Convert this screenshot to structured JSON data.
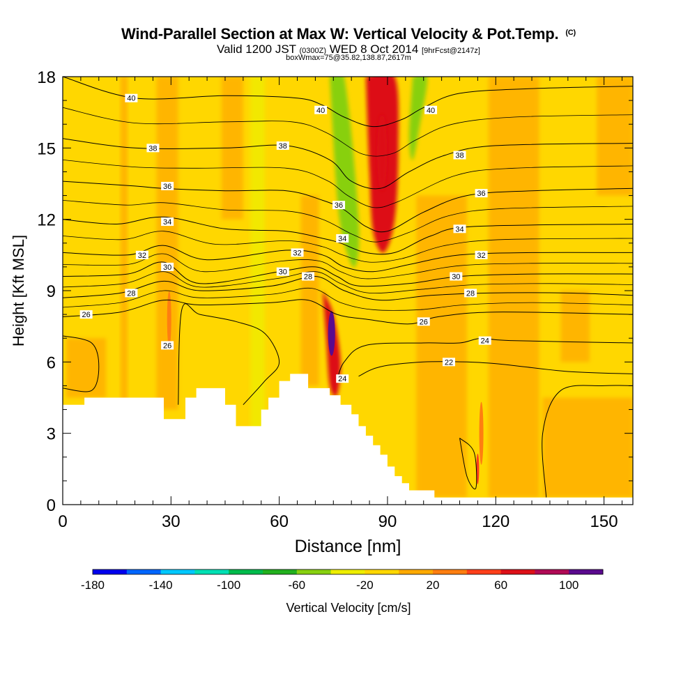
{
  "header": {
    "title": "Wind-Parallel Section at Max W: Vertical Velocity & Pot.Temp.",
    "copyright": "(C)",
    "valid_prefix": "Valid 1200 JST",
    "valid_utc": "(0300Z)",
    "valid_date": "WED 8 Oct 2014",
    "forecast": "[9hrFcst@2147z]",
    "box_info": "boxWmax=75@35.82,138.87,2617m"
  },
  "chart_data": {
    "type": "heatmap",
    "title": "Wind-Parallel Section at Max W: Vertical Velocity & Pot.Temp.",
    "xlabel": "Distance [nm]",
    "ylabel": "Height [Kft MSL]",
    "xlim": [
      0,
      158
    ],
    "ylim": [
      0,
      18
    ],
    "x_ticks": [
      "0",
      "30",
      "60",
      "90",
      "120",
      "150"
    ],
    "y_ticks": [
      "0",
      "3",
      "6",
      "9",
      "12",
      "15",
      "18"
    ],
    "colorbar": {
      "label": "Vertical Velocity [cm/s]",
      "tick_labels": [
        "-180",
        "-140",
        "-100",
        "-60",
        "-20",
        "20",
        "60",
        "100"
      ],
      "levels": [
        -180,
        -160,
        -140,
        -120,
        -100,
        -80,
        -60,
        -40,
        -20,
        0,
        20,
        40,
        60,
        80,
        100,
        120
      ],
      "colors": [
        "#0000ee",
        "#0066ff",
        "#00c8ff",
        "#00e0b4",
        "#00bb4c",
        "#22b01e",
        "#88d010",
        "#eeee00",
        "#ffd700",
        "#ffaa00",
        "#ff7e10",
        "#ff3f1a",
        "#dd1018",
        "#b00a55",
        "#5a0a8e"
      ]
    },
    "terrain": [
      [
        0,
        4.2
      ],
      [
        6,
        4.2
      ],
      [
        6,
        4.5
      ],
      [
        12,
        4.5
      ],
      [
        12,
        4.5
      ],
      [
        28,
        4.5
      ],
      [
        28,
        3.6
      ],
      [
        34,
        3.6
      ],
      [
        34,
        4.5
      ],
      [
        37,
        4.5
      ],
      [
        37,
        4.9
      ],
      [
        45,
        4.9
      ],
      [
        45,
        4.2
      ],
      [
        48,
        4.2
      ],
      [
        48,
        3.3
      ],
      [
        55,
        3.3
      ],
      [
        55,
        4.0
      ],
      [
        57,
        4.0
      ],
      [
        57,
        4.5
      ],
      [
        60,
        4.5
      ],
      [
        60,
        5.2
      ],
      [
        63,
        5.2
      ],
      [
        63,
        5.5
      ],
      [
        68,
        5.5
      ],
      [
        68,
        4.9
      ],
      [
        74,
        4.9
      ],
      [
        74,
        4.6
      ],
      [
        77,
        4.6
      ],
      [
        77,
        4.2
      ],
      [
        80,
        4.2
      ],
      [
        80,
        3.8
      ],
      [
        82,
        3.8
      ],
      [
        82,
        3.3
      ],
      [
        84,
        3.3
      ],
      [
        84,
        2.9
      ],
      [
        86,
        2.9
      ],
      [
        86,
        2.5
      ],
      [
        88,
        2.5
      ],
      [
        88,
        2.1
      ],
      [
        90,
        2.1
      ],
      [
        90,
        1.6
      ],
      [
        92,
        1.6
      ],
      [
        92,
        1.2
      ],
      [
        94,
        1.2
      ],
      [
        94,
        0.9
      ],
      [
        96,
        0.9
      ],
      [
        96,
        0.6
      ],
      [
        100,
        0.6
      ],
      [
        100,
        0.6
      ],
      [
        103,
        0.6
      ],
      [
        103,
        0.3
      ],
      [
        158,
        0.3
      ]
    ],
    "series": [
      {
        "name": "40",
        "values": [
          [
            0,
            18.0
          ],
          [
            20,
            17.1
          ],
          [
            45,
            17.2
          ],
          [
            65,
            17.1
          ],
          [
            72,
            16.8
          ],
          [
            78,
            16.3
          ],
          [
            86,
            15.9
          ],
          [
            94,
            16.2
          ],
          [
            100,
            16.7
          ],
          [
            110,
            17.3
          ],
          [
            130,
            17.5
          ],
          [
            158,
            17.6
          ]
        ]
      },
      {
        "name": "38",
        "values": [
          [
            0,
            15.4
          ],
          [
            20,
            15.0
          ],
          [
            45,
            15.0
          ],
          [
            62,
            15.1
          ],
          [
            74,
            14.5
          ],
          [
            80,
            13.6
          ],
          [
            88,
            13.3
          ],
          [
            96,
            14.0
          ],
          [
            106,
            14.7
          ],
          [
            120,
            15.1
          ],
          [
            158,
            15.2
          ]
        ]
      },
      {
        "name": "36",
        "values": [
          [
            0,
            13.6
          ],
          [
            20,
            13.4
          ],
          [
            28,
            13.3
          ],
          [
            45,
            13.2
          ],
          [
            62,
            13.2
          ],
          [
            72,
            12.8
          ],
          [
            78,
            12.4
          ],
          [
            84,
            11.7
          ],
          [
            90,
            11.5
          ],
          [
            100,
            12.3
          ],
          [
            112,
            13.0
          ],
          [
            130,
            13.2
          ],
          [
            158,
            13.3
          ]
        ]
      },
      {
        "name": "34",
        "values": [
          [
            0,
            12.0
          ],
          [
            15,
            11.8
          ],
          [
            28,
            12.1
          ],
          [
            45,
            11.6
          ],
          [
            62,
            11.5
          ],
          [
            72,
            11.2
          ],
          [
            77,
            11.0
          ],
          [
            84,
            10.6
          ],
          [
            92,
            10.6
          ],
          [
            102,
            11.3
          ],
          [
            114,
            11.7
          ],
          [
            158,
            11.8
          ]
        ]
      },
      {
        "name": "32",
        "values": [
          [
            0,
            10.6
          ],
          [
            18,
            10.5
          ],
          [
            28,
            10.9
          ],
          [
            40,
            10.3
          ],
          [
            62,
            10.7
          ],
          [
            72,
            10.5
          ],
          [
            78,
            10.0
          ],
          [
            86,
            9.8
          ],
          [
            96,
            10.1
          ],
          [
            110,
            10.5
          ],
          [
            130,
            10.6
          ],
          [
            158,
            10.6
          ]
        ]
      },
      {
        "name": "30",
        "values": [
          [
            0,
            9.6
          ],
          [
            18,
            9.7
          ],
          [
            28,
            10.2
          ],
          [
            38,
            9.3
          ],
          [
            60,
            9.8
          ],
          [
            70,
            10.0
          ],
          [
            76,
            9.6
          ],
          [
            82,
            9.2
          ],
          [
            96,
            9.3
          ],
          [
            110,
            9.6
          ],
          [
            130,
            9.7
          ],
          [
            158,
            9.7
          ]
        ]
      },
      {
        "name": "28",
        "values": [
          [
            0,
            8.7
          ],
          [
            16,
            8.9
          ],
          [
            28,
            9.4
          ],
          [
            38,
            9.0
          ],
          [
            58,
            9.2
          ],
          [
            70,
            9.6
          ],
          [
            78,
            9.0
          ],
          [
            88,
            8.6
          ],
          [
            102,
            8.8
          ],
          [
            118,
            8.9
          ],
          [
            140,
            8.9
          ],
          [
            158,
            8.8
          ]
        ]
      },
      {
        "name": "26",
        "values": [
          [
            0,
            7.9
          ],
          [
            16,
            8.1
          ],
          [
            28,
            8.6
          ],
          [
            38,
            8.4
          ],
          [
            58,
            8.5
          ],
          [
            68,
            8.6
          ],
          [
            76,
            8.0
          ],
          [
            84,
            7.8
          ],
          [
            96,
            7.6
          ],
          [
            104,
            7.9
          ],
          [
            120,
            8.1
          ],
          [
            158,
            8.0
          ]
        ]
      },
      {
        "name": "24",
        "values": [
          [
            76,
            5.2
          ],
          [
            78,
            6.0
          ],
          [
            84,
            6.7
          ],
          [
            100,
            6.8
          ],
          [
            110,
            6.8
          ],
          [
            116,
            7.0
          ],
          [
            124,
            6.9
          ],
          [
            158,
            6.8
          ]
        ]
      },
      {
        "name": "22",
        "values": [
          [
            82,
            5.4
          ],
          [
            88,
            5.8
          ],
          [
            100,
            6.0
          ],
          [
            112,
            6.0
          ],
          [
            122,
            5.9
          ],
          [
            140,
            5.6
          ],
          [
            158,
            5.5
          ]
        ]
      }
    ],
    "contour_labels": [
      {
        "text": "40",
        "x": 19,
        "y": 17.1
      },
      {
        "text": "40",
        "x": 71.5,
        "y": 16.6
      },
      {
        "text": "40",
        "x": 102,
        "y": 16.6
      },
      {
        "text": "38",
        "x": 25,
        "y": 15.0
      },
      {
        "text": "38",
        "x": 61,
        "y": 15.1
      },
      {
        "text": "38",
        "x": 110,
        "y": 14.7
      },
      {
        "text": "36",
        "x": 29,
        "y": 13.4
      },
      {
        "text": "36",
        "x": 76.5,
        "y": 12.6
      },
      {
        "text": "36",
        "x": 116,
        "y": 13.1
      },
      {
        "text": "34",
        "x": 29,
        "y": 11.9
      },
      {
        "text": "34",
        "x": 77.5,
        "y": 11.2
      },
      {
        "text": "34",
        "x": 110,
        "y": 11.6
      },
      {
        "text": "32",
        "x": 22,
        "y": 10.5
      },
      {
        "text": "32",
        "x": 65,
        "y": 10.6
      },
      {
        "text": "32",
        "x": 116,
        "y": 10.5
      },
      {
        "text": "30",
        "x": 29,
        "y": 10.0
      },
      {
        "text": "30",
        "x": 61,
        "y": 9.8
      },
      {
        "text": "30",
        "x": 109,
        "y": 9.6
      },
      {
        "text": "28",
        "x": 19,
        "y": 8.9
      },
      {
        "text": "28",
        "x": 68,
        "y": 9.6
      },
      {
        "text": "28",
        "x": 113,
        "y": 8.9
      },
      {
        "text": "26",
        "x": 6.5,
        "y": 8.0
      },
      {
        "text": "26",
        "x": 29,
        "y": 6.7
      },
      {
        "text": "26",
        "x": 100,
        "y": 7.7
      },
      {
        "text": "24",
        "x": 77.5,
        "y": 5.3
      },
      {
        "text": "24",
        "x": 117,
        "y": 6.9
      },
      {
        "text": "22",
        "x": 107,
        "y": 6.0
      }
    ],
    "wind_features": [
      {
        "label": "downdraft band",
        "value": -60,
        "points": [
          [
            74,
            18
          ],
          [
            78,
            18
          ],
          [
            82,
            12
          ],
          [
            81,
            10
          ],
          [
            78,
            11
          ],
          [
            76,
            13
          ]
        ]
      },
      {
        "label": "downdraft band east",
        "value": -60,
        "points": [
          [
            97,
            18
          ],
          [
            101,
            18
          ],
          [
            99,
            16
          ],
          [
            97,
            14.5
          ],
          [
            96,
            15.5
          ]
        ]
      },
      {
        "label": "updraft core",
        "value": 75,
        "points": [
          [
            72,
            9
          ],
          [
            75,
            8
          ],
          [
            77,
            6
          ],
          [
            76,
            4.6
          ],
          [
            74,
            5
          ],
          [
            73,
            7
          ]
        ]
      },
      {
        "label": "updraft upper",
        "value": 60,
        "points": [
          [
            84,
            18
          ],
          [
            92,
            18
          ],
          [
            93,
            15
          ],
          [
            92,
            12
          ],
          [
            89,
            10.6
          ],
          [
            86,
            11.5
          ],
          [
            85,
            14
          ]
        ]
      }
    ]
  }
}
